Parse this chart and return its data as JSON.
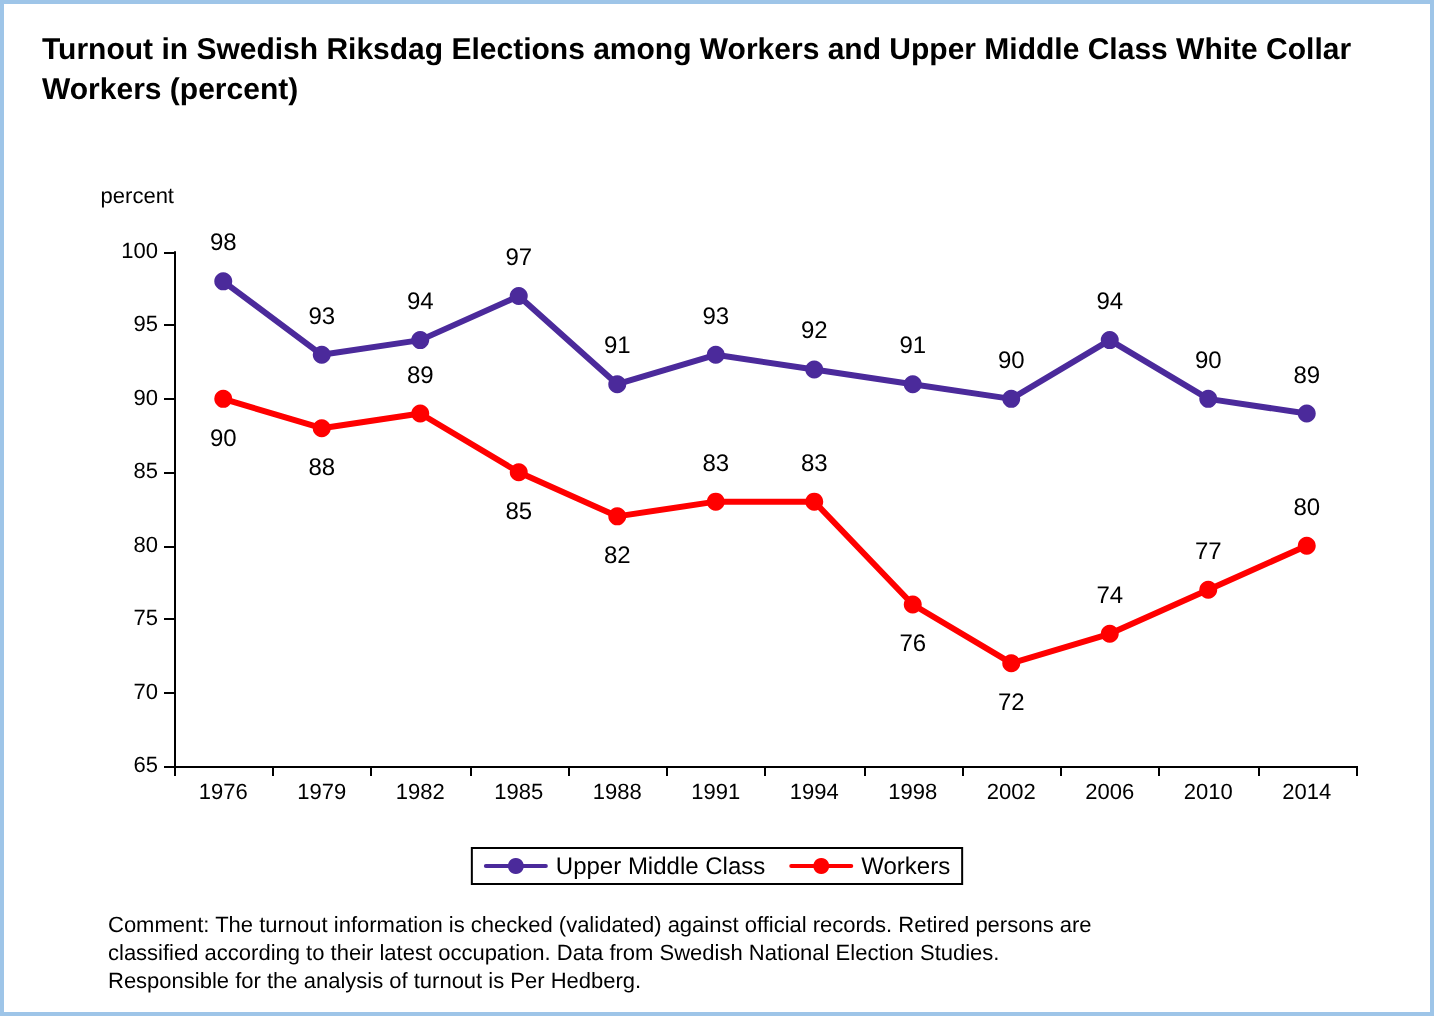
{
  "chart_data": {
    "type": "line",
    "title": "Turnout in Swedish Riksdag Elections among Workers and Upper Middle Class White Collar Workers (percent)",
    "ylabel": "percent",
    "categories": [
      "1976",
      "1979",
      "1982",
      "1985",
      "1988",
      "1991",
      "1994",
      "1998",
      "2002",
      "2006",
      "2010",
      "2014"
    ],
    "series": [
      {
        "name": "Upper Middle Class",
        "color": "#4b2a9b",
        "values": [
          98,
          93,
          94,
          97,
          91,
          93,
          92,
          91,
          90,
          94,
          90,
          89
        ]
      },
      {
        "name": "Workers",
        "color": "#ff0000",
        "values": [
          90,
          88,
          89,
          85,
          82,
          83,
          83,
          76,
          72,
          74,
          77,
          80
        ]
      }
    ],
    "ylim": [
      65,
      100
    ],
    "yticks": [
      65,
      70,
      75,
      80,
      85,
      90,
      95,
      100
    ],
    "grid": false,
    "legend": "bottom",
    "marker": "circle",
    "line_style": "solid",
    "data_labels": true,
    "annotations": [
      "Comment: The turnout information is checked (validated) against official records. Retired persons are classified according to their latest occupation. Data from Swedish National Election Studies. Responsible for the analysis of turnout is Per Hedberg."
    ]
  }
}
